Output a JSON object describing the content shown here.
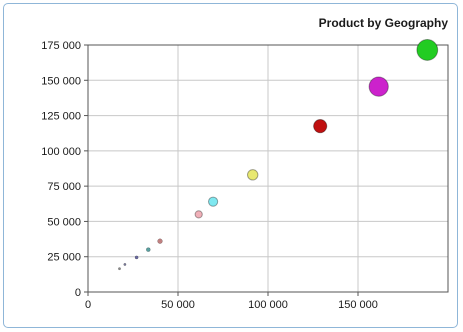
{
  "chart_data": {
    "type": "scatter",
    "title": "Product by Geography",
    "xlabel": "",
    "ylabel": "",
    "xlim": [
      0,
      200000
    ],
    "ylim": [
      0,
      175000
    ],
    "x_ticks": [
      0,
      50000,
      100000,
      150000
    ],
    "y_ticks": [
      0,
      25000,
      50000,
      75000,
      100000,
      125000,
      150000,
      175000
    ],
    "x_tick_labels": [
      "0",
      "50 000",
      "100 000",
      "150 000"
    ],
    "y_tick_labels": [
      "0",
      "25 000",
      "50 000",
      "75 000",
      "100 000",
      "125 000",
      "150 000",
      "175 000"
    ],
    "grid": true,
    "legend": "none",
    "points": [
      {
        "x": 17500,
        "y": 16500,
        "size": 1.2,
        "color": "#8a8a8a"
      },
      {
        "x": 20500,
        "y": 19500,
        "size": 1.2,
        "color": "#7a7a9a"
      },
      {
        "x": 27000,
        "y": 24500,
        "size": 1.6,
        "color": "#6a6aa0"
      },
      {
        "x": 33500,
        "y": 30000,
        "size": 2.0,
        "color": "#5aa0a0"
      },
      {
        "x": 40000,
        "y": 36000,
        "size": 2.4,
        "color": "#c08080"
      },
      {
        "x": 61500,
        "y": 55000,
        "size": 3.6,
        "color": "#f0b0b8"
      },
      {
        "x": 69500,
        "y": 64000,
        "size": 4.6,
        "color": "#7fe8f0"
      },
      {
        "x": 91500,
        "y": 83000,
        "size": 5.2,
        "color": "#e8e870"
      },
      {
        "x": 129000,
        "y": 117500,
        "size": 6.6,
        "color": "#c01010"
      },
      {
        "x": 161500,
        "y": 145500,
        "size": 9.6,
        "color": "#cc22cc"
      },
      {
        "x": 188500,
        "y": 171500,
        "size": 10.4,
        "color": "#22cc22"
      }
    ]
  }
}
